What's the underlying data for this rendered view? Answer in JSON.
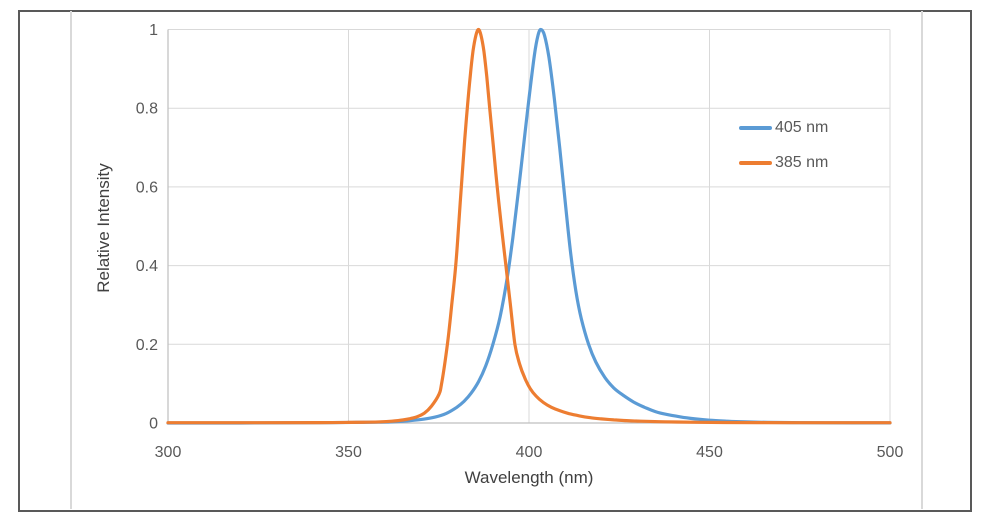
{
  "frame": {
    "outer_border_color": "#595959",
    "chart_edge_color": "#d9d9d9"
  },
  "chart_data": {
    "type": "line",
    "title": "",
    "xlabel": "Wavelength (nm)",
    "ylabel": "Relative Intensity",
    "xlim": [
      300,
      500
    ],
    "ylim": [
      0,
      1
    ],
    "xticks": [
      300,
      350,
      400,
      450,
      500
    ],
    "xtick_labels": [
      "300",
      "350",
      "400",
      "450",
      "500"
    ],
    "yticks": [
      0,
      0.2,
      0.4,
      0.6,
      0.8,
      1
    ],
    "ytick_labels": [
      "0",
      "0.2",
      "0.4",
      "0.6",
      "0.8",
      "1"
    ],
    "grid": true,
    "gridline_color": "#d9d9d9",
    "axis_line_color": "#bfbfbf",
    "tick_label_color": "#595959",
    "legend_position": "inside-right",
    "series": [
      {
        "name": "405 nm",
        "color": "#5B9BD5",
        "peak_nm": 403,
        "points": [
          [
            300,
            0.0
          ],
          [
            320,
            0.0
          ],
          [
            335,
            0.0005
          ],
          [
            345,
            0.001
          ],
          [
            352,
            0.0015
          ],
          [
            358,
            0.002
          ],
          [
            363,
            0.0035
          ],
          [
            367,
            0.006
          ],
          [
            371,
            0.01
          ],
          [
            374,
            0.015
          ],
          [
            377,
            0.024
          ],
          [
            380,
            0.04
          ],
          [
            382,
            0.055
          ],
          [
            384,
            0.076
          ],
          [
            386,
            0.105
          ],
          [
            388,
            0.145
          ],
          [
            390,
            0.2
          ],
          [
            392,
            0.27
          ],
          [
            394,
            0.37
          ],
          [
            395.5,
            0.47
          ],
          [
            397,
            0.585
          ],
          [
            398.8,
            0.73
          ],
          [
            400,
            0.825
          ],
          [
            401.5,
            0.935
          ],
          [
            402.5,
            0.985
          ],
          [
            403.3,
            1.0
          ],
          [
            404.3,
            0.985
          ],
          [
            405.5,
            0.93
          ],
          [
            407,
            0.825
          ],
          [
            408.5,
            0.7
          ],
          [
            410,
            0.565
          ],
          [
            411.5,
            0.435
          ],
          [
            413,
            0.335
          ],
          [
            414.5,
            0.265
          ],
          [
            416.5,
            0.2
          ],
          [
            418.5,
            0.155
          ],
          [
            421,
            0.116
          ],
          [
            423.5,
            0.089
          ],
          [
            426,
            0.071
          ],
          [
            429,
            0.053
          ],
          [
            432,
            0.04
          ],
          [
            435,
            0.029
          ],
          [
            438,
            0.022
          ],
          [
            442,
            0.0155
          ],
          [
            446,
            0.0105
          ],
          [
            450,
            0.0072
          ],
          [
            455,
            0.0045
          ],
          [
            460,
            0.0028
          ],
          [
            466,
            0.0016
          ],
          [
            473,
            0.0009
          ],
          [
            482,
            0.0005
          ],
          [
            500,
            0.0003
          ]
        ]
      },
      {
        "name": "385 nm",
        "color": "#ED7D31",
        "peak_nm": 386,
        "points": [
          [
            300,
            0.0008
          ],
          [
            325,
            0.0008
          ],
          [
            342,
            0.001
          ],
          [
            350,
            0.0015
          ],
          [
            355,
            0.002
          ],
          [
            359,
            0.003
          ],
          [
            362,
            0.0045
          ],
          [
            365,
            0.0075
          ],
          [
            367,
            0.011
          ],
          [
            369,
            0.016
          ],
          [
            371,
            0.025
          ],
          [
            373,
            0.043
          ],
          [
            375,
            0.072
          ],
          [
            375.8,
            0.1
          ],
          [
            377.4,
            0.2
          ],
          [
            378.6,
            0.3
          ],
          [
            379.7,
            0.4
          ],
          [
            380.5,
            0.5
          ],
          [
            381.4,
            0.62
          ],
          [
            382.2,
            0.72
          ],
          [
            382.9,
            0.8
          ],
          [
            383.7,
            0.88
          ],
          [
            384.5,
            0.945
          ],
          [
            385.3,
            0.985
          ],
          [
            386,
            1.0
          ],
          [
            386.7,
            0.985
          ],
          [
            387.5,
            0.945
          ],
          [
            388.3,
            0.88
          ],
          [
            389.1,
            0.8
          ],
          [
            390.1,
            0.705
          ],
          [
            391.2,
            0.6
          ],
          [
            392.4,
            0.495
          ],
          [
            393.6,
            0.4
          ],
          [
            394.8,
            0.305
          ],
          [
            396.1,
            0.2
          ],
          [
            397.4,
            0.15
          ],
          [
            398.8,
            0.115
          ],
          [
            400.3,
            0.088
          ],
          [
            402,
            0.068
          ],
          [
            404,
            0.052
          ],
          [
            406.2,
            0.04
          ],
          [
            408.6,
            0.031
          ],
          [
            411,
            0.024
          ],
          [
            414,
            0.018
          ],
          [
            417,
            0.0135
          ],
          [
            420,
            0.0105
          ],
          [
            423.5,
            0.008
          ],
          [
            427,
            0.006
          ],
          [
            431,
            0.0045
          ],
          [
            436,
            0.0033
          ],
          [
            441,
            0.0025
          ],
          [
            447,
            0.0018
          ],
          [
            454,
            0.0013
          ],
          [
            463,
            0.001
          ],
          [
            475,
            0.0008
          ],
          [
            500,
            0.0007
          ]
        ]
      }
    ]
  }
}
